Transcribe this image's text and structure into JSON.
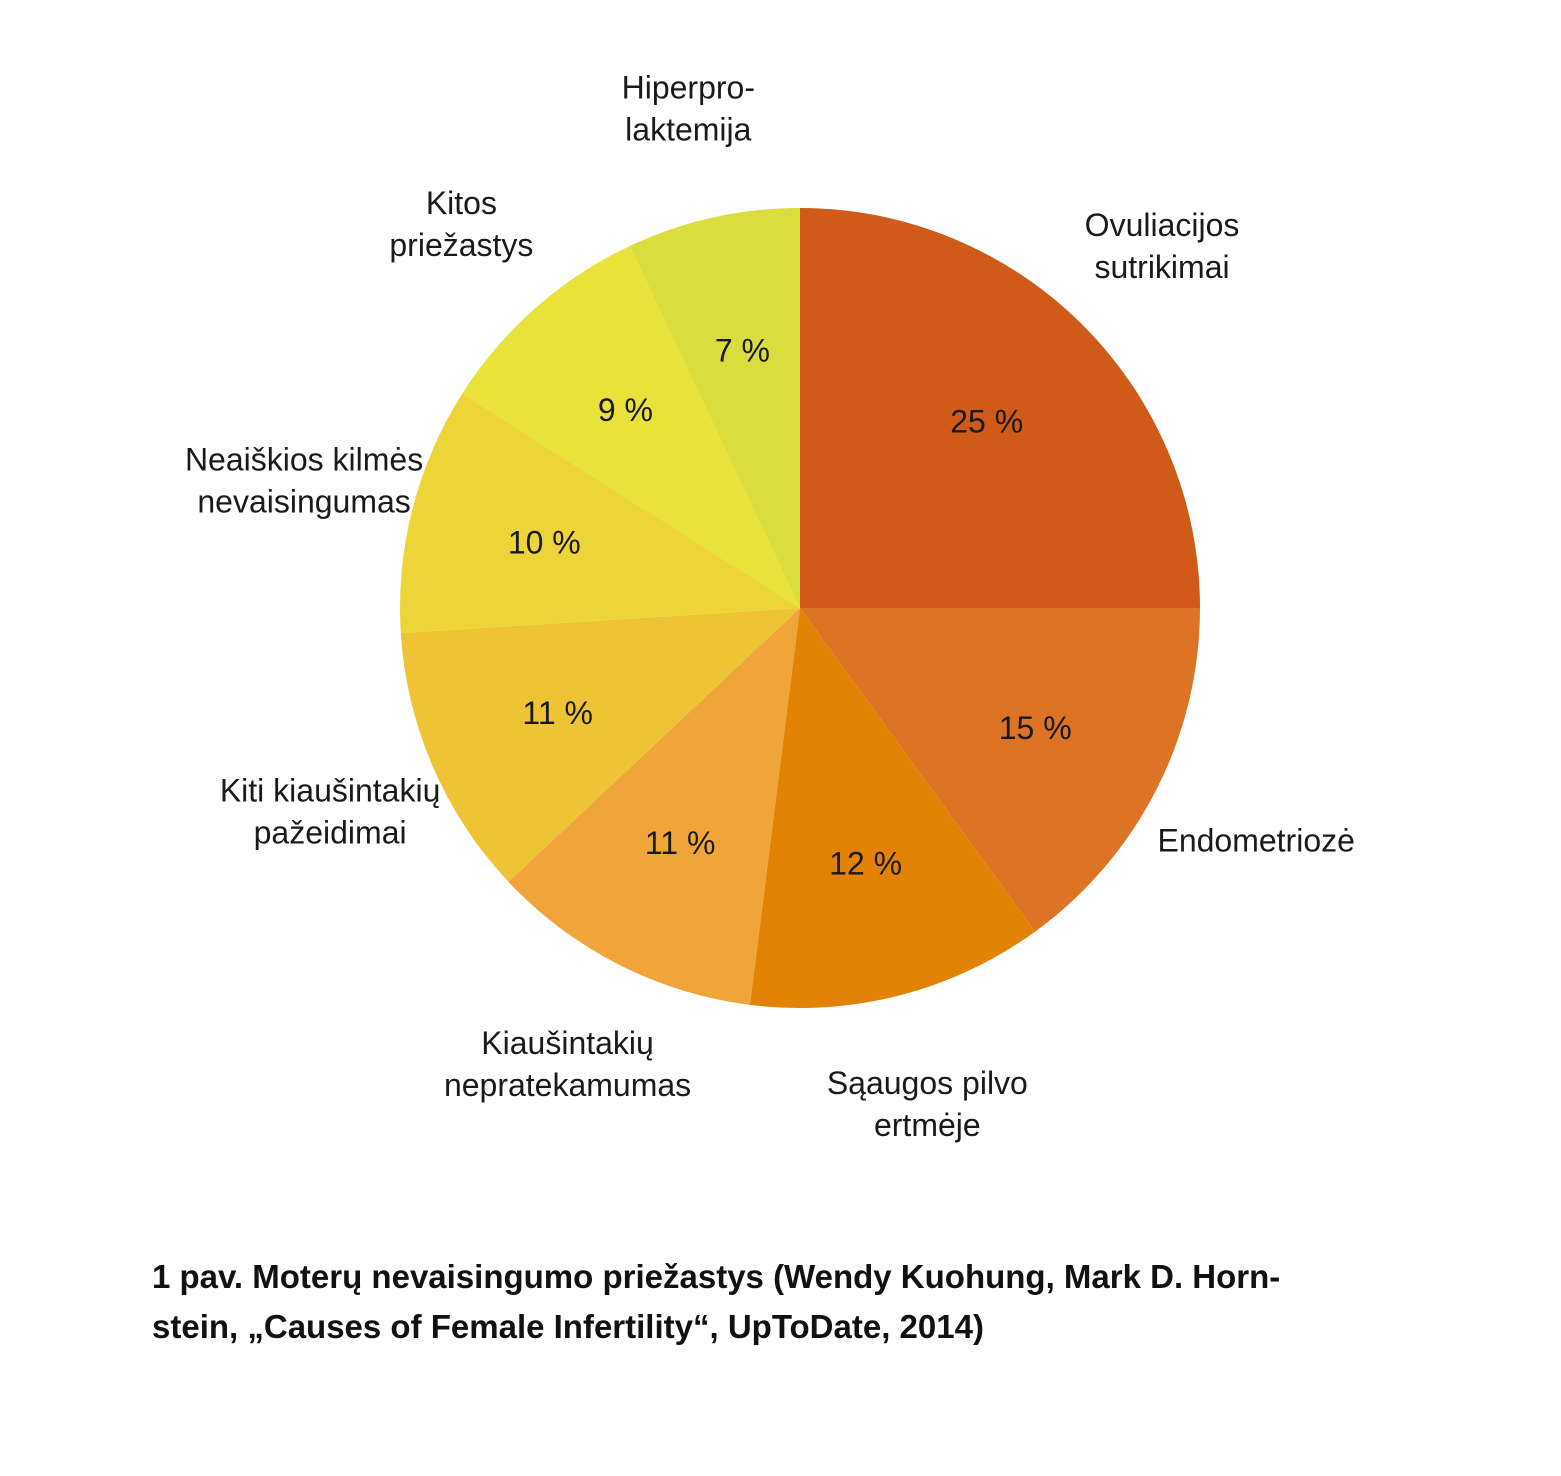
{
  "chart_data": {
    "type": "pie",
    "start_angle_deg": 0,
    "direction": "clockwise",
    "slices": [
      {
        "name": "Ovuliacijos sutrikimai",
        "label_lines": [
          "Ovuliacijos",
          "sutrikimai"
        ],
        "value": 25,
        "display": "25 %",
        "color": "#d05a17"
      },
      {
        "name": "Endometriozė",
        "label_lines": [
          "Endometriozė"
        ],
        "value": 15,
        "display": "15 %",
        "color": "#dd7325"
      },
      {
        "name": "Sąaugos pilvo ertmėje",
        "label_lines": [
          "Sąaugos pilvo",
          "ertmėje"
        ],
        "value": 12,
        "display": "12 %",
        "color": "#e28305"
      },
      {
        "name": "Kiaušintakių nepratekamumas",
        "label_lines": [
          "Kiaušintakių",
          "nepratekamumas"
        ],
        "value": 11,
        "display": "11 %",
        "color": "#efa53a"
      },
      {
        "name": "Kiti kiaušintakių pažeidimai",
        "label_lines": [
          "Kiti kiaušintakių",
          "pažeidimai"
        ],
        "value": 11,
        "display": "11 %",
        "color": "#eec436"
      },
      {
        "name": "Neaiškios kilmės nevaisingumas",
        "label_lines": [
          "Neaiškios kilmės",
          "nevaisingumas"
        ],
        "value": 10,
        "display": "10 %",
        "color": "#edd438"
      },
      {
        "name": "Kitos priežastys",
        "label_lines": [
          "Kitos",
          "priežastys"
        ],
        "value": 9,
        "display": "9 %",
        "color": "#e8e23a"
      },
      {
        "name": "Hiperprolaktemija",
        "label_lines": [
          "Hiperpro-",
          "laktemija"
        ],
        "value": 7,
        "display": "7 %",
        "color": "#d9dd3e"
      }
    ]
  },
  "caption": {
    "line1": "1 pav. Moterų nevaisingumo priežastys (Wendy Kuohung, Mark D. Horn-",
    "line2": "stein, „Causes of Female Infertility“, UpToDate, 2014)"
  }
}
